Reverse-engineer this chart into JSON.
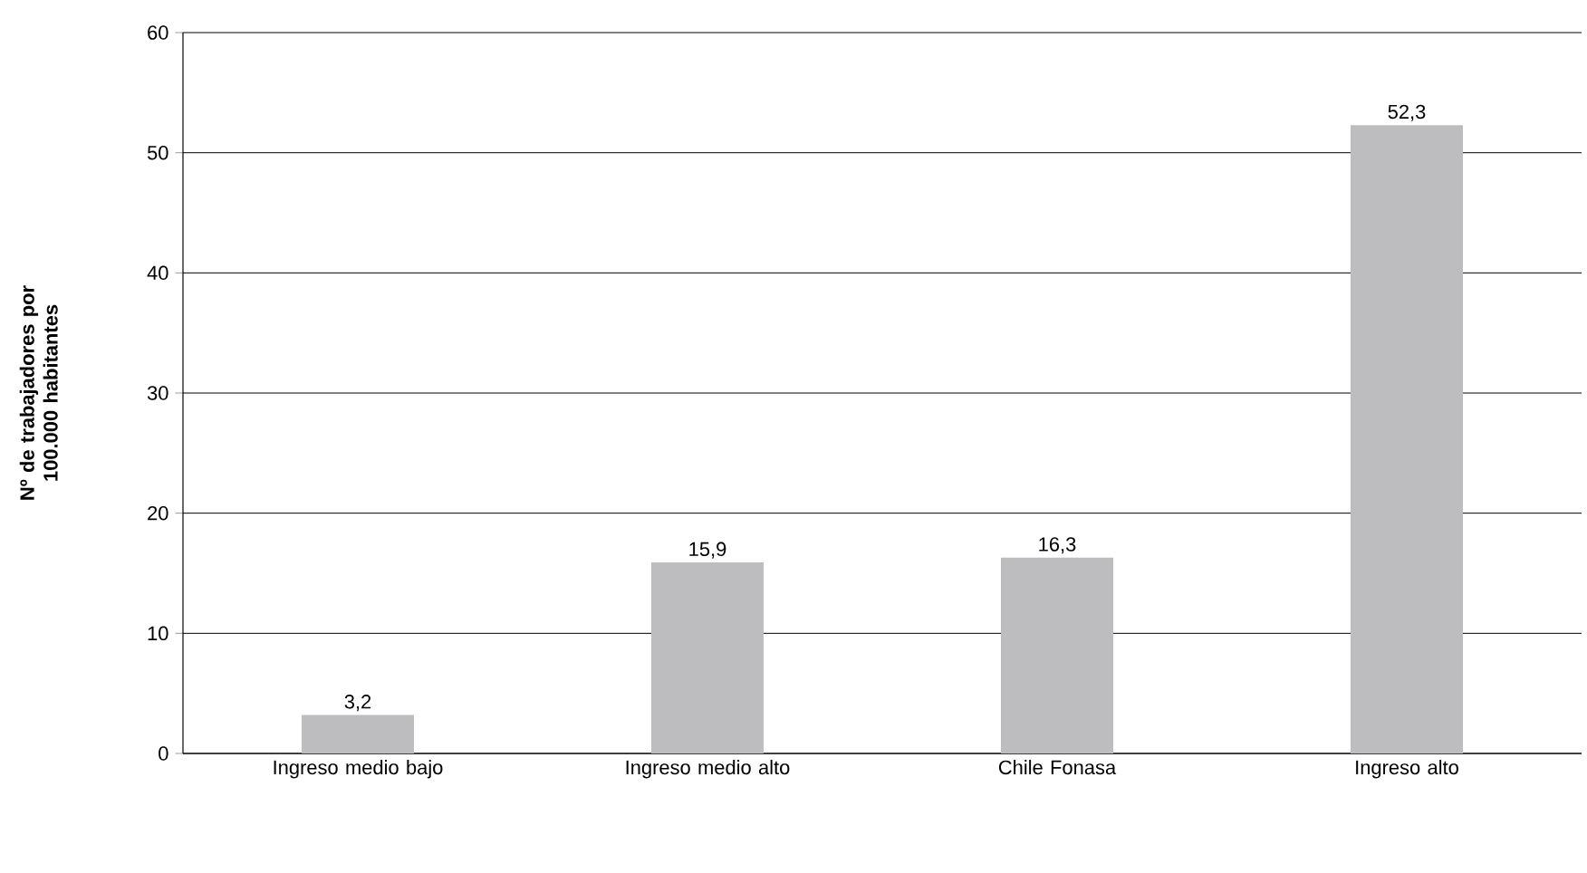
{
  "chart_data": {
    "type": "bar",
    "ylabel": "Nº de trabajadores por 100.000 habitantes",
    "categories": [
      "Ingreso medio bajo",
      "Ingreso medio alto",
      "Chile Fonasa",
      "Ingreso alto"
    ],
    "values": [
      3.2,
      15.9,
      16.3,
      52.3
    ],
    "value_labels": [
      "3,2",
      "15,9",
      "16,3",
      "52,3"
    ],
    "color": "#bdbdbf",
    "ylim": [
      0,
      60
    ],
    "yticks": [
      0,
      10,
      20,
      30,
      40,
      50,
      60
    ],
    "grid": "y"
  }
}
